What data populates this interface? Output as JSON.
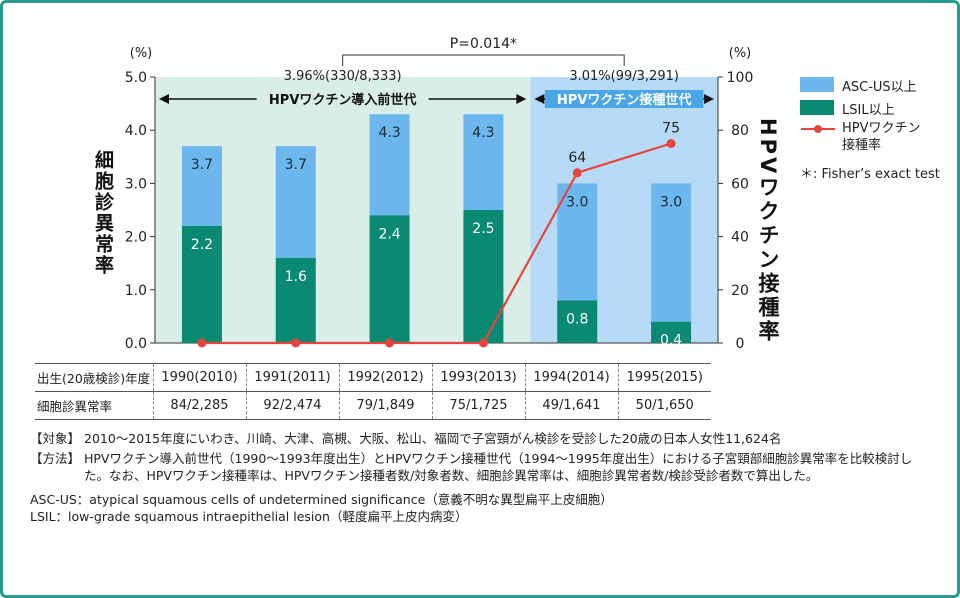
{
  "chart_data": {
    "type": "bar",
    "stacked": true,
    "categories": [
      "1990(2010)",
      "1991(2011)",
      "1992(2012)",
      "1993(2013)",
      "1994(2014)",
      "1995(2015)"
    ],
    "series": [
      {
        "name": "LSIL以上",
        "values": [
          2.2,
          1.6,
          2.4,
          2.5,
          0.8,
          0.4
        ],
        "color": "#0a8a72",
        "labels": [
          "2.2",
          "1.6",
          "2.4",
          "2.5",
          "0.8",
          "0.4"
        ]
      },
      {
        "name": "ASC-US以上",
        "values": [
          3.7,
          3.7,
          4.3,
          4.3,
          3.0,
          3.0
        ],
        "color": "#6cb8ee",
        "labels": [
          "3.7",
          "3.7",
          "4.3",
          "4.3",
          "3.0",
          "3.0"
        ],
        "note": "values are cumulative totals (top of bar)"
      }
    ],
    "line_series": {
      "name": "HPVワクチン接種率",
      "values": [
        0,
        0,
        0,
        0,
        64,
        75
      ],
      "labels": [
        "",
        "",
        "",
        "",
        "64",
        "75"
      ],
      "color": "#e8443e",
      "axis": "right"
    },
    "ylabel": "細胞診異常率",
    "y2label": "HPVワクチン接種率",
    "ylim": [
      0,
      5.0
    ],
    "y2lim": [
      0,
      100
    ],
    "yticks": [
      "0.0",
      "1.0",
      "2.0",
      "3.0",
      "4.0",
      "5.0"
    ],
    "y2ticks": [
      "0",
      "20",
      "40",
      "60",
      "80",
      "100"
    ],
    "y_unit": "(%)",
    "y2_unit": "(%)",
    "legend_placement": "right",
    "grid": false
  },
  "bands": [
    {
      "summary": "3.96%(330/8,333)",
      "label": "HPVワクチン導入前世代",
      "start": 0,
      "end": 3,
      "color": "#d9eee8",
      "text_color": "#111111"
    },
    {
      "summary": "3.01%(99/3,291)",
      "label": "HPVワクチン接種世代",
      "start": 4,
      "end": 5,
      "color": "#b7dbf7",
      "text_color": "#ffffff"
    }
  ],
  "pvalue": "P=0.014*",
  "legend": {
    "items": [
      {
        "label": "ASC-US以上",
        "type": "bar",
        "color": "#6cb8ee"
      },
      {
        "label": "LSIL以上",
        "type": "bar",
        "color": "#0a8a72"
      },
      {
        "label": "HPVワクチン\n接種率",
        "type": "line",
        "color": "#e8443e"
      }
    ],
    "footnote": "＊: Fisher’s exact test"
  },
  "table": {
    "rows": [
      {
        "header": "出生(20歳検診)年度",
        "cells": [
          "1990(2010)",
          "1991(2011)",
          "1992(2012)",
          "1993(2013)",
          "1994(2014)",
          "1995(2015)"
        ]
      },
      {
        "header": "細胞診異常率",
        "cells": [
          "84/2,285",
          "92/2,474",
          "79/1,849",
          "75/1,725",
          "49/1,641",
          "50/1,650"
        ]
      }
    ]
  },
  "notes": [
    {
      "tag": "【対象】",
      "text": "2010〜2015年度にいわき、川崎、大津、高槻、大阪、松山、福岡で子宮頸がん検診を受診した20歳の日本人女性11,624名"
    },
    {
      "tag": "【方法】",
      "text": "HPVワクチン導入前世代（1990〜1993年度出生）とHPVワクチン接種世代（1994〜1995年度出生）における子宮頸部細胞診異常率を比較検討した。なお、HPVワクチン接種率は、HPVワクチン接種者数/対象者数、細胞診異常率は、細胞診異常者数/検診受診者数で算出した。"
    }
  ],
  "abbrev": [
    "ASC-US：atypical squamous cells of undetermined significance（意義不明な異型扁平上皮細胞）",
    "LSIL：low-grade squamous intraepithelial lesion（軽度扁平上皮内病変）"
  ]
}
